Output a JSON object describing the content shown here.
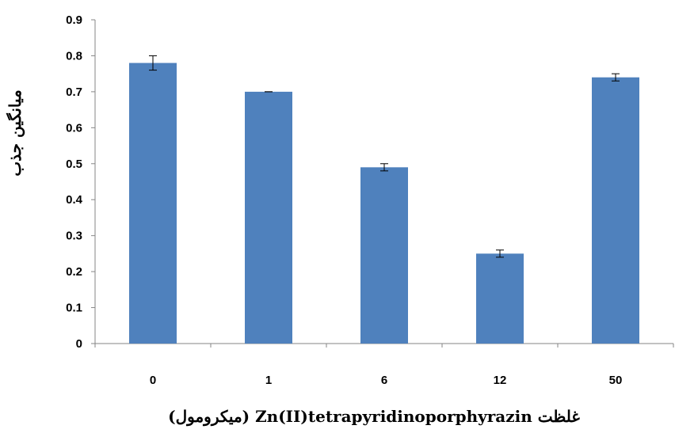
{
  "chart_data": {
    "type": "bar",
    "categories": [
      "0",
      "1",
      "6",
      "12",
      "50"
    ],
    "values": [
      0.78,
      0.7,
      0.49,
      0.25,
      0.74
    ],
    "error": [
      0.02,
      0.0,
      0.01,
      0.01,
      0.01
    ],
    "ylim": [
      0,
      0.9
    ],
    "yticks": [
      "0",
      "0.1",
      "0.2",
      "0.3",
      "0.4",
      "0.5",
      "0.6",
      "0.7",
      "0.8",
      "0.9"
    ],
    "ylabel": "میانگین جذب",
    "xlabel": "غلظت Zn(II)tetrapyridinoporphyrazin (میکرومول)",
    "bar_color": "#4f81bd",
    "grid": false,
    "legend": "none"
  }
}
